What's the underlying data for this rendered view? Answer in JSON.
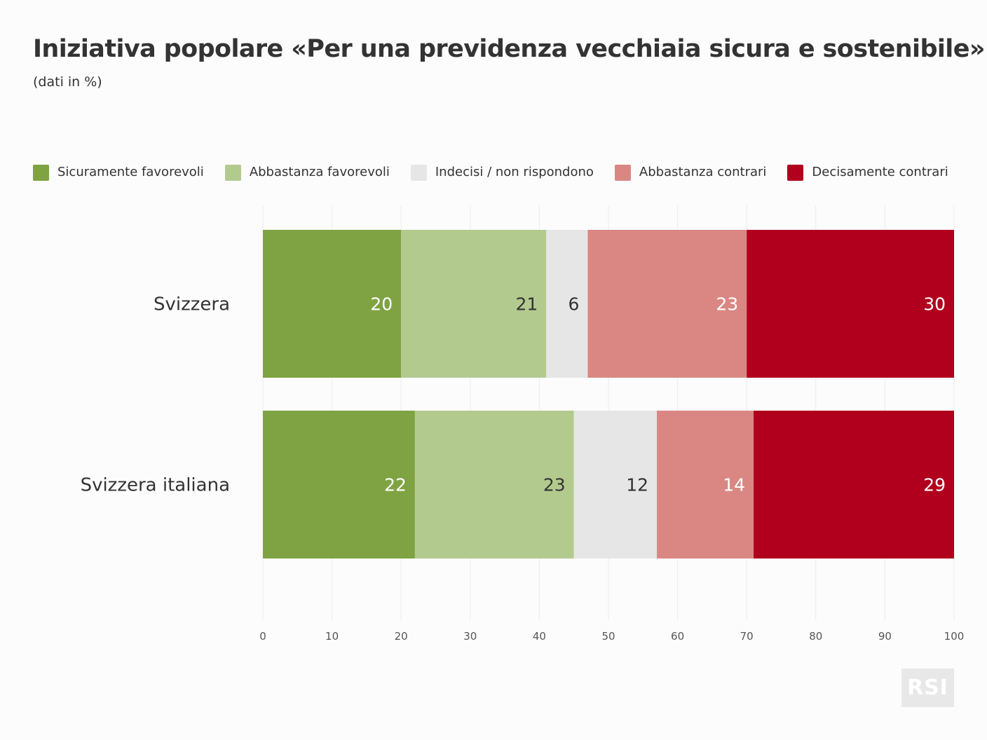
{
  "title": "Iniziativa popolare «Per una previdenza vecchiaia sicura e sostenibile»",
  "subtitle": "(dati in %)",
  "logo_text": "RSI",
  "chart_data": {
    "type": "bar",
    "orientation": "horizontal",
    "stacked": true,
    "categories": [
      "Svizzera",
      "Svizzera italiana"
    ],
    "series": [
      {
        "name": "Sicuramente favorevoli",
        "color": "#7fa343",
        "label_color": "#ffffff",
        "values": [
          20,
          22
        ]
      },
      {
        "name": "Abbastanza favorevoli",
        "color": "#b3ca8f",
        "label_color": "#333333",
        "values": [
          21,
          23
        ]
      },
      {
        "name": "Indecisi / non rispondono",
        "color": "#e6e6e6",
        "label_color": "#333333",
        "values": [
          6,
          12
        ]
      },
      {
        "name": "Abbastanza contrari",
        "color": "#da8783",
        "label_color": "#ffffff",
        "values": [
          23,
          14
        ]
      },
      {
        "name": "Decisamente contrari",
        "color": "#b0001e",
        "label_color": "#ffffff",
        "values": [
          30,
          29
        ]
      }
    ],
    "xlim": [
      0,
      100
    ],
    "xticks": [
      0,
      10,
      20,
      30,
      40,
      50,
      60,
      70,
      80,
      90,
      100
    ],
    "grid": true,
    "legend": "top-left"
  }
}
